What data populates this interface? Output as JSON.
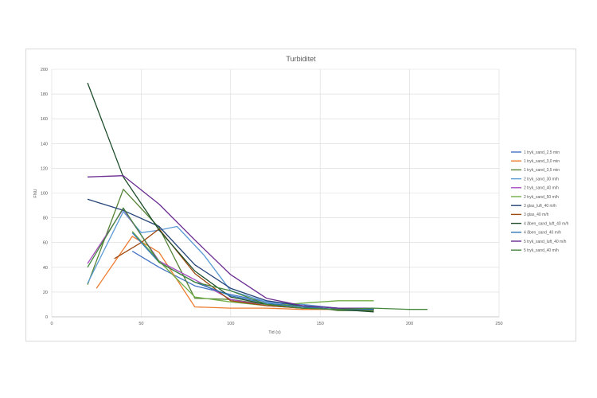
{
  "chart_data": {
    "type": "line",
    "title": "Turbiditet",
    "xlabel": "Tid (s)",
    "ylabel": "FNU",
    "xlim": [
      0,
      250
    ],
    "ylim": [
      0,
      200
    ],
    "xticks": [
      0,
      50,
      100,
      150,
      200,
      250
    ],
    "yticks": [
      0,
      20,
      40,
      60,
      80,
      100,
      120,
      140,
      160,
      180,
      200
    ],
    "grid": true,
    "legend_position": "right",
    "series": [
      {
        "name": "1 tryk_sand_2,5 min",
        "color": "#4472c4",
        "points": [
          [
            45,
            53
          ],
          [
            60,
            40
          ],
          [
            80,
            25
          ],
          [
            100,
            18
          ],
          [
            120,
            12
          ],
          [
            140,
            9
          ],
          [
            160,
            7
          ],
          [
            180,
            6
          ]
        ]
      },
      {
        "name": "1 tryk_sand_3,0 min",
        "color": "#ed7d31",
        "points": [
          [
            25,
            23
          ],
          [
            45,
            65
          ],
          [
            60,
            52
          ],
          [
            80,
            8
          ],
          [
            100,
            7
          ],
          [
            120,
            7
          ],
          [
            140,
            6
          ],
          [
            160,
            6
          ],
          [
            180,
            5
          ]
        ]
      },
      {
        "name": "1 tryk_sand_3,5 min",
        "color": "#548235",
        "points": [
          [
            20,
            26
          ],
          [
            40,
            103
          ],
          [
            60,
            72
          ],
          [
            80,
            15
          ],
          [
            100,
            14
          ],
          [
            120,
            10
          ],
          [
            140,
            9
          ],
          [
            160,
            5
          ],
          [
            180,
            5
          ]
        ]
      },
      {
        "name": "2 tryk_sand_30 m/h",
        "color": "#5b9bd5",
        "points": [
          [
            20,
            27
          ],
          [
            40,
            85
          ],
          [
            50,
            68
          ],
          [
            60,
            70
          ],
          [
            70,
            73
          ],
          [
            85,
            50
          ],
          [
            100,
            21
          ],
          [
            120,
            12
          ],
          [
            140,
            10
          ],
          [
            160,
            7
          ],
          [
            180,
            7
          ]
        ]
      },
      {
        "name": "2 tryk_sand_40 m/h",
        "color": "#a64dbf",
        "points": [
          [
            20,
            43
          ],
          [
            40,
            87
          ],
          [
            60,
            45
          ],
          [
            80,
            30
          ],
          [
            100,
            14
          ],
          [
            120,
            9
          ],
          [
            140,
            7
          ],
          [
            160,
            6
          ],
          [
            180,
            6
          ]
        ]
      },
      {
        "name": "2 tryk_sand_50 m/h",
        "color": "#70ad47",
        "points": [
          [
            45,
            69
          ],
          [
            60,
            45
          ],
          [
            80,
            16
          ],
          [
            100,
            12
          ],
          [
            120,
            9
          ],
          [
            140,
            11
          ],
          [
            160,
            13
          ],
          [
            180,
            13
          ]
        ]
      },
      {
        "name": "3 glas_luft_40 m/h",
        "color": "#264478",
        "points": [
          [
            20,
            95
          ],
          [
            40,
            86
          ],
          [
            60,
            73
          ],
          [
            80,
            42
          ],
          [
            100,
            23
          ],
          [
            120,
            13
          ],
          [
            140,
            9
          ],
          [
            160,
            7
          ],
          [
            180,
            6
          ]
        ]
      },
      {
        "name": "3 glas_40 m/h",
        "color": "#9e480e",
        "points": [
          [
            35,
            47
          ],
          [
            50,
            60
          ],
          [
            60,
            71
          ],
          [
            80,
            35
          ],
          [
            100,
            13
          ],
          [
            120,
            9
          ],
          [
            140,
            7
          ],
          [
            160,
            6
          ],
          [
            180,
            6
          ]
        ]
      },
      {
        "name": "4 åben_sand_luft_40 m/h",
        "color": "#1e4d2b",
        "points": [
          [
            20,
            189
          ],
          [
            40,
            113
          ],
          [
            60,
            70
          ],
          [
            80,
            37
          ],
          [
            100,
            16
          ],
          [
            120,
            10
          ],
          [
            140,
            7
          ],
          [
            160,
            6
          ],
          [
            180,
            4
          ]
        ]
      },
      {
        "name": "4 åben_sand_40 m/h",
        "color": "#2e75b6",
        "points": [
          [
            45,
            68
          ],
          [
            60,
            44
          ],
          [
            80,
            28
          ],
          [
            100,
            17
          ],
          [
            120,
            11
          ],
          [
            140,
            8
          ],
          [
            160,
            6
          ],
          [
            180,
            6
          ]
        ]
      },
      {
        "name": "5 tryk_sand_luft_40 m/h",
        "color": "#6a2c91",
        "points": [
          [
            20,
            113
          ],
          [
            40,
            114
          ],
          [
            60,
            91
          ],
          [
            80,
            62
          ],
          [
            100,
            34
          ],
          [
            120,
            15
          ],
          [
            140,
            9
          ],
          [
            160,
            7
          ],
          [
            180,
            7
          ]
        ]
      },
      {
        "name": "5 tryk_sand_40 m/h",
        "color": "#43873a",
        "points": [
          [
            20,
            40
          ],
          [
            40,
            88
          ],
          [
            60,
            44
          ],
          [
            80,
            28
          ],
          [
            100,
            21
          ],
          [
            120,
            10
          ],
          [
            140,
            7
          ],
          [
            160,
            6
          ],
          [
            180,
            7
          ],
          [
            200,
            6
          ],
          [
            210,
            6
          ]
        ]
      }
    ]
  }
}
